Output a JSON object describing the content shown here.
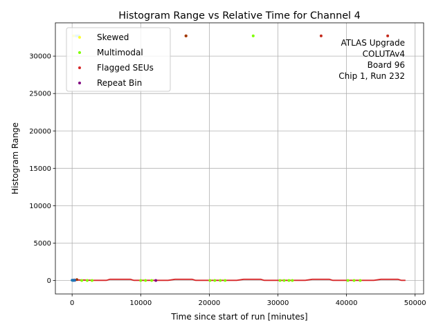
{
  "chart_data": {
    "type": "scatter",
    "title": "Histogram Range vs Relative Time for Channel 4",
    "xlabel": "Time since start of run [minutes]",
    "ylabel": "Histogram Range",
    "xlim": [
      -2440,
      51240
    ],
    "ylim": [
      -1800,
      34450
    ],
    "xticks": [
      0,
      10000,
      20000,
      30000,
      40000,
      50000
    ],
    "xtick_labels": [
      "0",
      "10000",
      "20000",
      "30000",
      "40000",
      "50000"
    ],
    "yticks": [
      0,
      5000,
      10000,
      15000,
      20000,
      25000,
      30000
    ],
    "ytick_labels": [
      "0",
      "5000",
      "10000",
      "15000",
      "20000",
      "25000",
      "30000"
    ],
    "grid": true,
    "legend_position": "upper-left",
    "legend": [
      {
        "label": "Skewed",
        "color": "#ffff33"
      },
      {
        "label": "Multimodal",
        "color": "#7fff00"
      },
      {
        "label": "Flagged SEUs",
        "color": "#d62728"
      },
      {
        "label": "Repeat Bin",
        "color": "#800080"
      }
    ],
    "annotation": [
      "ATLAS Upgrade",
      "COLUTAv4",
      "Board 96",
      "Chip 1, Run 232"
    ],
    "series": [
      {
        "name": "Flagged SEUs",
        "color": "#d62728",
        "type": "line",
        "x": [
          0,
          1500,
          3000,
          5000,
          5500,
          8500,
          9000,
          10500,
          12000,
          14000,
          15000,
          17500,
          18000,
          20000,
          22000,
          24000,
          25000,
          27500,
          28000,
          30000,
          32000,
          34000,
          35000,
          37500,
          38000,
          40000,
          42000,
          44000,
          45000,
          47500,
          48000,
          48600
        ],
        "y": [
          70,
          70,
          20,
          20,
          160,
          160,
          20,
          20,
          20,
          20,
          160,
          160,
          20,
          20,
          20,
          20,
          160,
          160,
          20,
          20,
          20,
          20,
          160,
          160,
          20,
          20,
          20,
          20,
          160,
          160,
          20,
          20
        ]
      },
      {
        "name": "Flagged SEUs",
        "color": "#c42a1c",
        "type": "points",
        "x": [
          16600,
          36300,
          46000
        ],
        "y": [
          32700,
          32700,
          32700
        ]
      },
      {
        "name": "Flagged SEUs",
        "color": "#a03a00",
        "type": "points",
        "x": [
          100,
          300,
          700,
          16600
        ],
        "y": [
          50,
          80,
          120,
          32700
        ]
      },
      {
        "name": "Multimodal",
        "color": "#7fff00",
        "type": "points",
        "x": [
          26400,
          1400,
          2200,
          2900,
          10000,
          10700,
          11600,
          20100,
          20800,
          21600,
          22300,
          30300,
          30900,
          31600,
          32100,
          40200,
          41100,
          42000
        ],
        "y": [
          32700,
          0,
          0,
          0,
          0,
          0,
          0,
          0,
          0,
          0,
          0,
          0,
          0,
          0,
          0,
          0,
          0,
          0
        ]
      },
      {
        "name": "Skewed",
        "color": "#ffff33",
        "type": "points",
        "x": [
          200,
          500,
          900
        ],
        "y": [
          32700,
          32700,
          32700
        ]
      },
      {
        "name": "",
        "color": "#87cefa",
        "type": "points",
        "x": [
          600,
          800,
          1000,
          100,
          300
        ],
        "y": [
          32700,
          32700,
          32700,
          50,
          60
        ]
      },
      {
        "name": "Repeat Bin",
        "color": "#800080",
        "type": "points",
        "x": [
          200,
          400,
          12200
        ],
        "y": [
          30,
          30,
          0
        ]
      },
      {
        "name": "",
        "color": "#1f77b4",
        "type": "points",
        "x": [
          0,
          150,
          350
        ],
        "y": [
          40,
          0,
          30
        ]
      }
    ]
  }
}
